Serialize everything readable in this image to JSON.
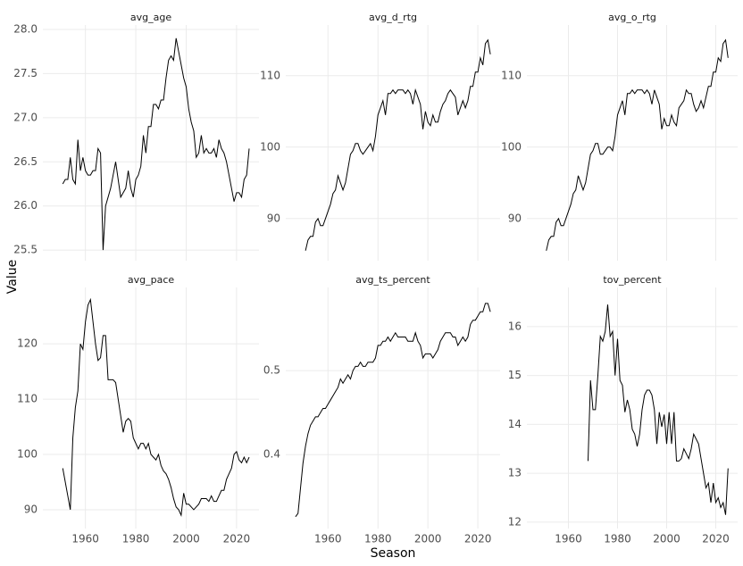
{
  "x_label": "Season",
  "y_label": "Value",
  "chart_data": [
    {
      "type": "line",
      "title": "avg_age",
      "x": [
        1951,
        1952,
        1953,
        1954,
        1955,
        1956,
        1957,
        1958,
        1959,
        1960,
        1961,
        1962,
        1963,
        1964,
        1965,
        1966,
        1967,
        1968,
        1969,
        1970,
        1971,
        1972,
        1973,
        1974,
        1975,
        1976,
        1977,
        1978,
        1979,
        1980,
        1981,
        1982,
        1983,
        1984,
        1985,
        1986,
        1987,
        1988,
        1989,
        1990,
        1991,
        1992,
        1993,
        1994,
        1995,
        1996,
        1997,
        1998,
        1999,
        2000,
        2001,
        2002,
        2003,
        2004,
        2005,
        2006,
        2007,
        2008,
        2009,
        2010,
        2011,
        2012,
        2013,
        2014,
        2015,
        2016,
        2017,
        2018,
        2019,
        2020,
        2021,
        2022,
        2023,
        2024,
        2025
      ],
      "values": [
        26.25,
        26.3,
        26.3,
        26.55,
        26.3,
        26.25,
        26.75,
        26.4,
        26.55,
        26.4,
        26.35,
        26.35,
        26.4,
        26.4,
        26.65,
        26.6,
        25.5,
        26.0,
        26.1,
        26.2,
        26.35,
        26.5,
        26.3,
        26.1,
        26.15,
        26.2,
        26.4,
        26.2,
        26.1,
        26.3,
        26.35,
        26.45,
        26.8,
        26.6,
        26.9,
        26.9,
        27.15,
        27.15,
        27.1,
        27.2,
        27.2,
        27.45,
        27.65,
        27.7,
        27.65,
        27.9,
        27.75,
        27.6,
        27.45,
        27.35,
        27.1,
        26.95,
        26.85,
        26.55,
        26.6,
        26.8,
        26.6,
        26.65,
        26.6,
        26.6,
        26.65,
        26.55,
        26.75,
        26.65,
        26.6,
        26.5,
        26.35,
        26.2,
        26.05,
        26.15,
        26.15,
        26.1,
        26.3,
        26.35,
        26.65
      ],
      "color": "#000000",
      "xlim": [
        1943.1,
        2028.9
      ],
      "xticks": [
        1960,
        1980,
        2000,
        2020
      ],
      "ylim": [
        25.38,
        28.05
      ],
      "yticks": [
        25.5,
        {
          "value": 26,
          "label": "26.0"
        },
        26.5,
        {
          "value": 27,
          "label": "27.0"
        },
        27.5,
        {
          "value": 28,
          "label": "28.0"
        }
      ],
      "grid": true
    },
    {
      "type": "line",
      "title": "avg_d_rtg",
      "x": [
        1951,
        1952,
        1953,
        1954,
        1955,
        1956,
        1957,
        1958,
        1959,
        1960,
        1961,
        1962,
        1963,
        1964,
        1965,
        1966,
        1967,
        1968,
        1969,
        1970,
        1971,
        1972,
        1973,
        1974,
        1975,
        1976,
        1977,
        1978,
        1979,
        1980,
        1981,
        1982,
        1983,
        1984,
        1985,
        1986,
        1987,
        1988,
        1989,
        1990,
        1991,
        1992,
        1993,
        1994,
        1995,
        1996,
        1997,
        1998,
        1999,
        2000,
        2001,
        2002,
        2003,
        2004,
        2005,
        2006,
        2007,
        2008,
        2009,
        2010,
        2011,
        2012,
        2013,
        2014,
        2015,
        2016,
        2017,
        2018,
        2019,
        2020,
        2021,
        2022,
        2023,
        2024,
        2025
      ],
      "values": [
        85.5,
        87,
        87.5,
        87.5,
        89.5,
        90,
        89,
        89,
        90,
        91,
        92,
        93.5,
        94,
        96,
        95,
        94,
        95,
        97,
        99,
        99.5,
        100.5,
        100.5,
        99.5,
        99,
        99.5,
        100,
        100.5,
        99.5,
        101.5,
        104.5,
        105.5,
        106.5,
        104.5,
        107.5,
        107.5,
        108,
        107.5,
        108,
        108,
        108,
        107.5,
        108,
        107.5,
        106,
        108,
        107,
        106,
        102.5,
        105,
        103.5,
        103,
        104.5,
        103.5,
        103.5,
        105,
        106,
        106.5,
        107.5,
        108,
        107.5,
        107,
        104.5,
        105.5,
        106.5,
        105.5,
        106.5,
        108.5,
        108.5,
        110.5,
        110.5,
        112.5,
        111.5,
        114.5,
        115,
        113
      ],
      "color": "#000000",
      "xlim": [
        1943.1,
        2028.9
      ],
      "xticks": [
        1960,
        1980,
        2000,
        2020
      ],
      "ylim": [
        84.1,
        117.1
      ],
      "yticks": [
        90,
        100,
        110
      ],
      "grid": true
    },
    {
      "type": "line",
      "title": "avg_o_rtg",
      "x": [
        1951,
        1952,
        1953,
        1954,
        1955,
        1956,
        1957,
        1958,
        1959,
        1960,
        1961,
        1962,
        1963,
        1964,
        1965,
        1966,
        1967,
        1968,
        1969,
        1970,
        1971,
        1972,
        1973,
        1974,
        1975,
        1976,
        1977,
        1978,
        1979,
        1980,
        1981,
        1982,
        1983,
        1984,
        1985,
        1986,
        1987,
        1988,
        1989,
        1990,
        1991,
        1992,
        1993,
        1994,
        1995,
        1996,
        1997,
        1998,
        1999,
        2000,
        2001,
        2002,
        2003,
        2004,
        2005,
        2006,
        2007,
        2008,
        2009,
        2010,
        2011,
        2012,
        2013,
        2014,
        2015,
        2016,
        2017,
        2018,
        2019,
        2020,
        2021,
        2022,
        2023,
        2024,
        2025
      ],
      "values": [
        85.5,
        87,
        87.5,
        87.5,
        89.5,
        90,
        89,
        89,
        90,
        91,
        92,
        93.5,
        94,
        96,
        95,
        94,
        95,
        97,
        99,
        99.5,
        100.5,
        100.5,
        99,
        99,
        99.5,
        100,
        100,
        99.5,
        101.5,
        104.5,
        105.5,
        106.5,
        104.5,
        107.5,
        107.5,
        108,
        107.5,
        108,
        108,
        108,
        107.5,
        108,
        107.5,
        106,
        108,
        107,
        106,
        102.5,
        104,
        103,
        103,
        104.5,
        103.5,
        103,
        105.5,
        106,
        106.5,
        108,
        107.5,
        107.5,
        106,
        105,
        105.5,
        106.5,
        105.5,
        107,
        108.5,
        108.5,
        110.5,
        110.5,
        112.5,
        112,
        114.5,
        115,
        112.5
      ],
      "color": "#000000",
      "xlim": [
        1943.1,
        2028.9
      ],
      "xticks": [
        1960,
        1980,
        2000,
        2020
      ],
      "ylim": [
        84.1,
        117.1
      ],
      "yticks": [
        90,
        100,
        110
      ],
      "grid": true
    },
    {
      "type": "line",
      "title": "avg_pace",
      "x": [
        1951,
        1952,
        1953,
        1954,
        1955,
        1956,
        1957,
        1958,
        1959,
        1960,
        1961,
        1962,
        1963,
        1964,
        1965,
        1966,
        1967,
        1968,
        1969,
        1970,
        1971,
        1972,
        1973,
        1974,
        1975,
        1976,
        1977,
        1978,
        1979,
        1980,
        1981,
        1982,
        1983,
        1984,
        1985,
        1986,
        1987,
        1988,
        1989,
        1990,
        1991,
        1992,
        1993,
        1994,
        1995,
        1996,
        1997,
        1998,
        1999,
        2000,
        2001,
        2002,
        2003,
        2004,
        2005,
        2006,
        2007,
        2008,
        2009,
        2010,
        2011,
        2012,
        2013,
        2014,
        2015,
        2016,
        2017,
        2018,
        2019,
        2020,
        2021,
        2022,
        2023,
        2024,
        2025
      ],
      "values": [
        97.5,
        95,
        92.5,
        90,
        103,
        108.5,
        111.5,
        120,
        119,
        124,
        127,
        128,
        124,
        120,
        117,
        117.5,
        121.5,
        121.5,
        113.5,
        113.5,
        113.5,
        113,
        110,
        107,
        104,
        106,
        106.5,
        106,
        103,
        102,
        101,
        102,
        102,
        101,
        102,
        100,
        99.5,
        99,
        100,
        98,
        97,
        96.5,
        95.5,
        94,
        92,
        90.5,
        90,
        89,
        93,
        91,
        91,
        90.5,
        90,
        90.5,
        91,
        92,
        92,
        92,
        91.5,
        92.5,
        91.5,
        91.5,
        92.5,
        93.5,
        93.5,
        95.5,
        96.5,
        97.5,
        100,
        100.5,
        99,
        98.5,
        99.5,
        98.5,
        99.5
      ],
      "color": "#000000",
      "xlim": [
        1943.1,
        2028.9
      ],
      "xticks": [
        1960,
        1980,
        2000,
        2020
      ],
      "ylim": [
        86.6,
        130.2
      ],
      "yticks": [
        90,
        100,
        110,
        120
      ],
      "grid": true
    },
    {
      "type": "line",
      "title": "avg_ts_percent",
      "x": [
        1947,
        1948,
        1949,
        1950,
        1951,
        1952,
        1953,
        1954,
        1955,
        1956,
        1957,
        1958,
        1959,
        1960,
        1961,
        1962,
        1963,
        1964,
        1965,
        1966,
        1967,
        1968,
        1969,
        1970,
        1971,
        1972,
        1973,
        1974,
        1975,
        1976,
        1977,
        1978,
        1979,
        1980,
        1981,
        1982,
        1983,
        1984,
        1985,
        1986,
        1987,
        1988,
        1989,
        1990,
        1991,
        1992,
        1993,
        1994,
        1995,
        1996,
        1997,
        1998,
        1999,
        2000,
        2001,
        2002,
        2003,
        2004,
        2005,
        2006,
        2007,
        2008,
        2009,
        2010,
        2011,
        2012,
        2013,
        2014,
        2015,
        2016,
        2017,
        2018,
        2019,
        2020,
        2021,
        2022,
        2023,
        2024,
        2025
      ],
      "values": [
        0.326,
        0.33,
        0.36,
        0.39,
        0.41,
        0.425,
        0.435,
        0.44,
        0.445,
        0.445,
        0.45,
        0.455,
        0.455,
        0.46,
        0.465,
        0.47,
        0.475,
        0.48,
        0.49,
        0.485,
        0.49,
        0.495,
        0.49,
        0.5,
        0.505,
        0.505,
        0.51,
        0.505,
        0.505,
        0.51,
        0.51,
        0.51,
        0.515,
        0.53,
        0.53,
        0.535,
        0.535,
        0.54,
        0.535,
        0.54,
        0.545,
        0.54,
        0.54,
        0.54,
        0.54,
        0.535,
        0.535,
        0.535,
        0.545,
        0.535,
        0.53,
        0.515,
        0.52,
        0.52,
        0.52,
        0.515,
        0.52,
        0.525,
        0.535,
        0.54,
        0.545,
        0.545,
        0.545,
        0.54,
        0.54,
        0.53,
        0.535,
        0.54,
        0.535,
        0.54,
        0.555,
        0.56,
        0.56,
        0.565,
        0.57,
        0.57,
        0.58,
        0.58,
        0.57
      ],
      "color": "#000000",
      "xlim": [
        1943.1,
        2028.9
      ],
      "xticks": [
        1960,
        1980,
        2000,
        2020
      ],
      "ylim": [
        0.312,
        0.599
      ],
      "yticks": [
        0.4,
        0.5
      ],
      "grid": true
    },
    {
      "type": "line",
      "title": "tov_percent",
      "x": [
        1968,
        1969,
        1970,
        1971,
        1972,
        1973,
        1974,
        1975,
        1976,
        1977,
        1978,
        1979,
        1980,
        1981,
        1982,
        1983,
        1984,
        1985,
        1986,
        1987,
        1988,
        1989,
        1990,
        1991,
        1992,
        1993,
        1994,
        1995,
        1996,
        1997,
        1998,
        1999,
        2000,
        2001,
        2002,
        2003,
        2004,
        2005,
        2006,
        2007,
        2008,
        2009,
        2010,
        2011,
        2012,
        2013,
        2014,
        2015,
        2016,
        2017,
        2018,
        2019,
        2020,
        2021,
        2022,
        2023,
        2024,
        2025
      ],
      "values": [
        13.25,
        14.9,
        14.3,
        14.3,
        15,
        15.8,
        15.7,
        15.9,
        16.45,
        15.8,
        15.9,
        15,
        15.75,
        14.9,
        14.8,
        14.25,
        14.5,
        14.3,
        13.9,
        13.8,
        13.55,
        13.8,
        14.3,
        14.6,
        14.7,
        14.7,
        14.6,
        14.3,
        13.6,
        14.25,
        13.95,
        14.2,
        13.6,
        14.25,
        13.6,
        14.25,
        13.25,
        13.25,
        13.3,
        13.5,
        13.4,
        13.3,
        13.5,
        13.8,
        13.7,
        13.6,
        13.3,
        13.0,
        12.7,
        12.8,
        12.4,
        12.8,
        12.4,
        12.5,
        12.3,
        12.4,
        12.15,
        13.1
      ],
      "color": "#000000",
      "xlim": [
        1943.1,
        2028.9
      ],
      "xticks": [
        1960,
        1980,
        2000,
        2020
      ],
      "ylim": [
        11.87,
        16.8
      ],
      "yticks": [
        12,
        13,
        14,
        15,
        16
      ],
      "grid": true
    }
  ]
}
